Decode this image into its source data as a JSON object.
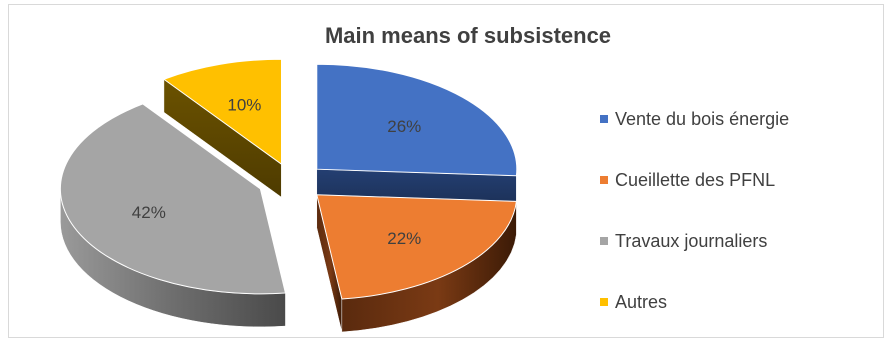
{
  "chart_data": {
    "type": "pie",
    "title": "Main means of subsistence",
    "categories": [
      "Vente du bois énergie",
      "Cueillette des PFNL",
      "Travaux journaliers",
      "Autres"
    ],
    "values": [
      26,
      22,
      42,
      10
    ],
    "value_labels": [
      "26%",
      "22%",
      "42%",
      "10%"
    ],
    "colors": [
      "#4472C4",
      "#ED7D31",
      "#A5A5A5",
      "#FFC000"
    ],
    "exploded": true,
    "legend_position": "right"
  }
}
